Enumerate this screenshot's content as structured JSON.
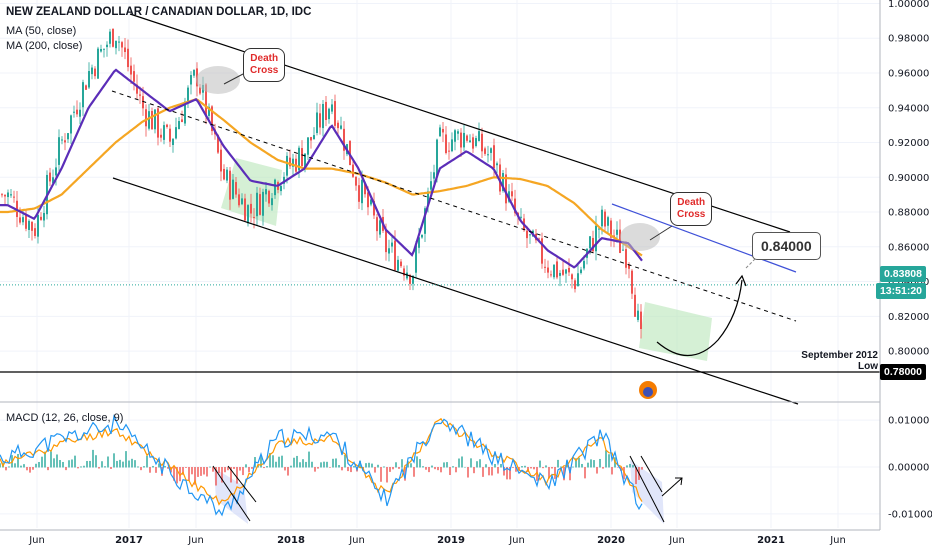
{
  "header": {
    "title": "NEW ZEALAND DOLLAR / CANADIAN DOLLAR, 1D, IDC",
    "ma50_label": "MA (50, close)",
    "ma200_label": "MA (200, close)",
    "macd_label": "MACD (12, 26, close, 9)"
  },
  "colors": {
    "ma50": "#5b2db8",
    "ma200": "#f5a623",
    "candle_up": "#26a69a",
    "candle_down": "#ef5350",
    "macd": "#2196f3",
    "signal": "#ff9800",
    "price_badge": "#26a69a",
    "timer_badge": "#26a69a",
    "level_badge": "#000000",
    "channel_line": "#000000",
    "blue_line": "#3f51d8",
    "green_zone": "#b9e6b9"
  },
  "annotations": {
    "death_cross_1": "Death\nCross",
    "death_cross_2": "Death\nCross",
    "target": "0.84000",
    "sep_2012_line1": "September 2012",
    "sep_2012_line2": "Low"
  },
  "badges": {
    "current_price": "0.83808",
    "countdown": "13:51:20",
    "level_078": "0.78000"
  },
  "chart_data": [
    {
      "type": "line",
      "title": "NEW ZEALAND DOLLAR / CANADIAN DOLLAR, 1D, IDC",
      "x_ticks": [
        "Jun",
        "2017",
        "Jun",
        "2018",
        "Jun",
        "2019",
        "Jun",
        "2020",
        "Jun",
        "2021",
        "Jun"
      ],
      "y_ticks": [
        0.8,
        0.82,
        0.84,
        0.86,
        0.88,
        0.9,
        0.92,
        0.94,
        0.96,
        0.98,
        1.0
      ],
      "ylim": [
        0.773,
        1.002
      ],
      "x": [
        "2016-04",
        "2016-06",
        "2016-08",
        "2016-10",
        "2016-12",
        "2017-02",
        "2017-04",
        "2017-06",
        "2017-08",
        "2017-10",
        "2017-12",
        "2018-02",
        "2018-04",
        "2018-06",
        "2018-08",
        "2018-10",
        "2018-12",
        "2019-02",
        "2019-04",
        "2019-06",
        "2019-08",
        "2019-10",
        "2019-12",
        "2020-02",
        "2020-03"
      ],
      "series": [
        {
          "values": [
            0.89,
            0.87,
            0.92,
            0.96,
            0.985,
            0.94,
            0.92,
            0.96,
            0.9,
            0.88,
            0.9,
            0.915,
            0.945,
            0.895,
            0.86,
            0.845,
            0.92,
            0.925,
            0.91,
            0.87,
            0.85,
            0.84,
            0.875,
            0.855,
            0.8
          ]
        },
        {
          "values": [
            0.884,
            0.876,
            0.905,
            0.94,
            0.962,
            0.95,
            0.938,
            0.945,
            0.918,
            0.898,
            0.895,
            0.905,
            0.93,
            0.905,
            0.87,
            0.855,
            0.905,
            0.915,
            0.905,
            0.875,
            0.858,
            0.848,
            0.865,
            0.862,
            0.852
          ]
        },
        {
          "values": [
            0.88,
            0.882,
            0.89,
            0.905,
            0.92,
            0.932,
            0.94,
            0.945,
            0.933,
            0.92,
            0.91,
            0.905,
            0.905,
            0.902,
            0.897,
            0.89,
            0.892,
            0.895,
            0.9,
            0.899,
            0.895,
            0.885,
            0.87,
            0.86,
            0.855
          ]
        }
      ],
      "current_price": 0.83808,
      "target_level": 0.84,
      "support_level": 0.78
    },
    {
      "type": "bar",
      "title": "MACD (12, 26, close, 9)",
      "y_ticks": [
        0.01,
        0.0,
        -0.01
      ],
      "ylim": [
        -0.013,
        0.013
      ],
      "x": [
        "2016-04",
        "2016-08",
        "2016-12",
        "2017-04",
        "2017-08",
        "2017-12",
        "2018-04",
        "2018-08",
        "2018-12",
        "2019-04",
        "2019-08",
        "2019-12",
        "2020-03"
      ],
      "series": [
        {
          "values": [
            0.002,
            0.006,
            0.009,
            -0.001,
            -0.01,
            0.006,
            0.007,
            -0.007,
            0.011,
            0.002,
            -0.004,
            0.007,
            -0.009
          ]
        },
        {
          "values": [
            0.001,
            0.005,
            0.008,
            0.0,
            -0.008,
            0.005,
            0.006,
            -0.006,
            0.01,
            0.003,
            -0.003,
            0.006,
            -0.007
          ]
        }
      ]
    }
  ]
}
